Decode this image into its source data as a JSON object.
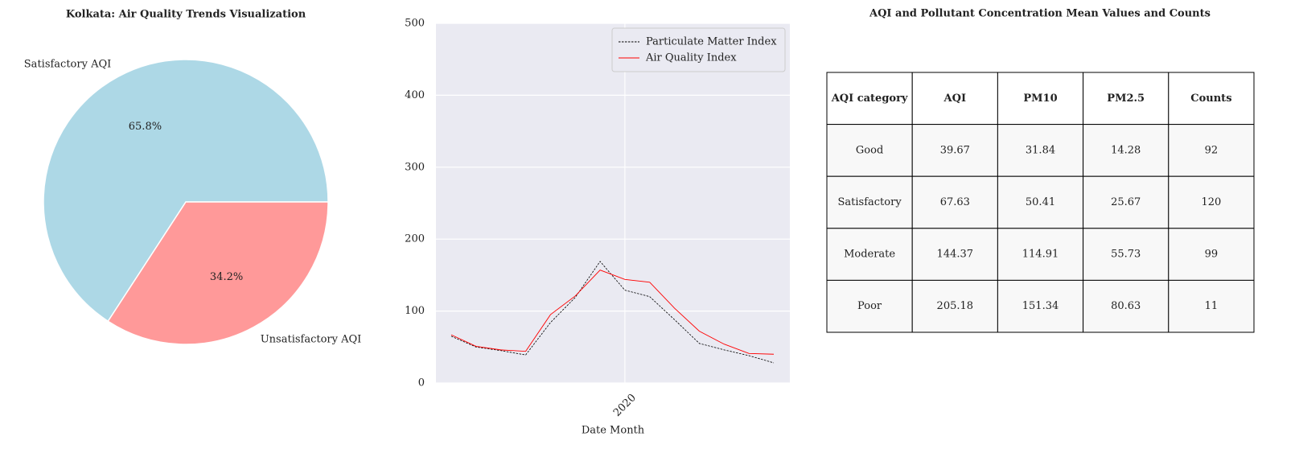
{
  "chart_data": [
    {
      "type": "pie",
      "title": "Kolkata: Air Quality Trends Visualization",
      "categories": [
        "Satisfactory AQI",
        "Unsatisfactory AQI"
      ],
      "values": [
        65.8,
        34.2
      ],
      "value_labels": [
        "65.8%",
        "34.2%"
      ],
      "colors": [
        "#add8e6",
        "#ff9999"
      ]
    },
    {
      "type": "line",
      "xlabel": "Date Month",
      "categories": [
        null,
        null,
        null,
        null,
        null,
        null,
        null,
        "2020",
        null,
        null,
        null,
        null,
        null,
        null
      ],
      "series": [
        {
          "name": "Particulate Matter Index",
          "color": "#000000",
          "linestyle": "dashed",
          "values": [
            65,
            50,
            45,
            39,
            84,
            119,
            169,
            129,
            120,
            88,
            55,
            46,
            38,
            28
          ]
        },
        {
          "name": "Air Quality Index",
          "color": "#ff0000",
          "linestyle": "solid",
          "values": [
            67,
            51,
            46,
            44,
            95,
            121,
            157,
            144,
            140,
            104,
            72,
            54,
            41,
            40
          ]
        }
      ],
      "ylim": [
        0,
        500
      ],
      "yticks": [
        0,
        100,
        200,
        300,
        400,
        500
      ],
      "grid": true,
      "legend": "upper right"
    }
  ],
  "table": {
    "title": "AQI and Pollutant Concentration Mean Values and Counts",
    "columns": [
      "AQI category",
      "AQI",
      "PM10",
      "PM2.5",
      "Counts"
    ],
    "rows": [
      [
        "Good",
        39.67,
        31.84,
        14.28,
        92
      ],
      [
        "Satisfactory",
        67.63,
        50.41,
        25.67,
        120
      ],
      [
        "Moderate",
        144.37,
        114.91,
        55.73,
        99
      ],
      [
        "Poor",
        205.18,
        151.34,
        80.63,
        11
      ]
    ]
  }
}
